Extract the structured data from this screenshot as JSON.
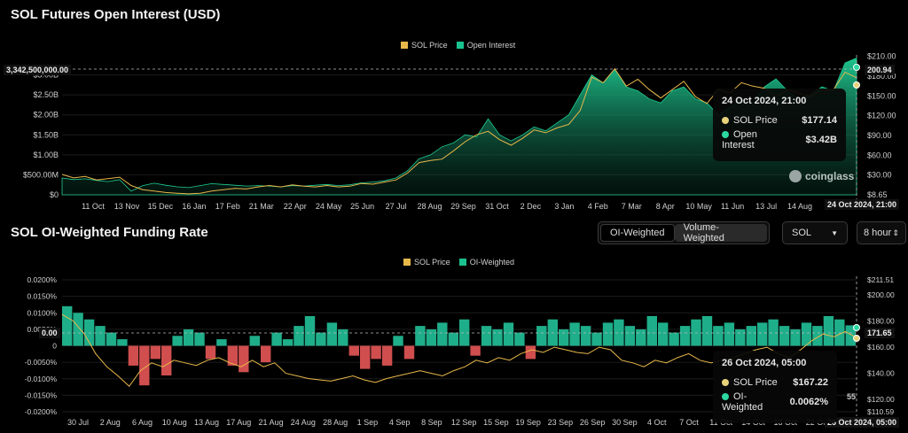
{
  "chart1": {
    "title": "SOL Futures Open Interest (USD)",
    "legend": [
      {
        "label": "SOL Price",
        "color": "#e8b84a"
      },
      {
        "label": "Open Interest",
        "color": "#19c28e"
      }
    ],
    "crosshair_value": "3,342,500,000.00",
    "right_top_label": "200.94",
    "x_highlight": "24 Oct 2024, 21:00",
    "tooltip": {
      "header": "24 Oct 2024, 21:00",
      "rows": [
        {
          "label": "SOL Price",
          "value": "$177.14",
          "color": "#e8d27a"
        },
        {
          "label": "Open Interest",
          "value": "$3.42B",
          "color": "#2bd8a0"
        }
      ]
    },
    "watermark": "coinglass"
  },
  "chart2": {
    "title": "SOL OI-Weighted Funding Rate",
    "legend": [
      {
        "label": "SOL Price",
        "color": "#e8b84a"
      },
      {
        "label": "OI-Weighted",
        "color": "#19c28e"
      }
    ],
    "crosshair_value": "0.00",
    "right_label": "171.65",
    "x_highlight": "26 Oct 2024, 05:00",
    "tooltip": {
      "header": "26 Oct 2024, 05:00",
      "rows": [
        {
          "label": "SOL Price",
          "value": "$167.22",
          "color": "#e8d27a"
        },
        {
          "label": "OI-Weighted",
          "value": "0.0062%",
          "color": "#2bd8a0"
        }
      ]
    },
    "stray_label": "55"
  },
  "controls": {
    "toggle_active": "OI-Weighted",
    "toggle_inactive": "Volume-Weighted",
    "coin": "SOL",
    "interval": "8 hour"
  },
  "chart_data": [
    {
      "type": "area",
      "title": "SOL Futures Open Interest (USD)",
      "x_ticks": [
        "11 Oct",
        "13 Nov",
        "15 Dec",
        "16 Jan",
        "17 Feb",
        "21 Mar",
        "22 Apr",
        "24 May",
        "25 Jun",
        "27 Jul",
        "28 Aug",
        "29 Sep",
        "31 Oct",
        "2 Dec",
        "3 Jan",
        "4 Feb",
        "7 Mar",
        "8 Apr",
        "10 May",
        "11 Jun",
        "13 Jul",
        "14 Aug",
        "15 S"
      ],
      "y_left_ticks": [
        "$0",
        "$500.00M",
        "$1.00B",
        "$1.50B",
        "$2.00B",
        "$2.50B",
        "$3.00B"
      ],
      "y_right_ticks": [
        "$8.65",
        "$30.00",
        "$60.00",
        "$90.00",
        "$120.00",
        "$150.00",
        "$180.00",
        "$210.00"
      ],
      "y_left_range": [
        0,
        3500000000
      ],
      "y_right_range": [
        8.65,
        210
      ],
      "series": [
        {
          "name": "Open Interest",
          "axis": "left",
          "values": [
            420000000,
            380000000,
            400000000,
            360000000,
            330000000,
            380000000,
            90000000,
            230000000,
            290000000,
            240000000,
            200000000,
            180000000,
            230000000,
            280000000,
            260000000,
            240000000,
            220000000,
            230000000,
            220000000,
            200000000,
            230000000,
            220000000,
            240000000,
            260000000,
            230000000,
            250000000,
            300000000,
            320000000,
            350000000,
            420000000,
            600000000,
            900000000,
            1000000000,
            1200000000,
            1300000000,
            1500000000,
            1450000000,
            1900000000,
            1500000000,
            1350000000,
            1500000000,
            1700000000,
            1600000000,
            1800000000,
            2000000000,
            2500000000,
            3000000000,
            2800000000,
            3150000000,
            2700000000,
            2600000000,
            2400000000,
            2300000000,
            2600000000,
            2700000000,
            2400000000,
            2300000000,
            2000000000,
            2200000000,
            2400000000,
            2300000000,
            2700000000,
            2900000000,
            2600000000,
            2400000000,
            2500000000,
            2700000000,
            2600000000,
            3300000000,
            3420000000
          ]
        },
        {
          "name": "SOL Price",
          "axis": "right",
          "values": [
            38,
            33,
            35,
            30,
            32,
            34,
            22,
            16,
            14,
            12,
            11,
            10,
            11,
            14,
            16,
            18,
            17,
            20,
            22,
            20,
            23,
            21,
            20,
            22,
            20,
            21,
            25,
            24,
            27,
            30,
            40,
            55,
            58,
            60,
            72,
            85,
            95,
            100,
            88,
            80,
            90,
            102,
            98,
            105,
            110,
            130,
            178,
            170,
            190,
            165,
            175,
            160,
            148,
            160,
            172,
            150,
            140,
            160,
            155,
            170,
            165,
            162,
            150,
            160,
            155,
            150,
            160,
            160,
            185,
            177.14
          ]
        }
      ]
    },
    {
      "type": "bar",
      "title": "SOL OI-Weighted Funding Rate",
      "x_ticks": [
        "30 Jul",
        "2 Aug",
        "6 Aug",
        "10 Aug",
        "13 Aug",
        "17 Aug",
        "21 Aug",
        "24 Aug",
        "28 Aug",
        "1 Sep",
        "4 Sep",
        "8 Sep",
        "12 Sep",
        "15 Sep",
        "19 Sep",
        "23 Sep",
        "26 Sep",
        "30 Sep",
        "4 Oct",
        "7 Oct",
        "11 Oct",
        "14 Oct",
        "18 Oct",
        "22 Oct"
      ],
      "y_left_ticks": [
        "-0.0200%",
        "-0.0150%",
        "-0.0100%",
        "-0.0050%",
        "0",
        "0.0050%",
        "0.0100%",
        "0.0150%",
        "0.0200%"
      ],
      "y_right_ticks": [
        "$110.59",
        "$120.00",
        "$140.00",
        "$160.00",
        "$180.00",
        "$200.00",
        "$211.51"
      ],
      "y_left_range": [
        -0.02,
        0.02
      ],
      "y_right_range": [
        110.59,
        211.51
      ],
      "series": [
        {
          "name": "OI-Weighted",
          "axis": "left",
          "values": [
            0.012,
            0.01,
            0.008,
            0.006,
            0.004,
            0.002,
            -0.006,
            -0.012,
            -0.004,
            -0.009,
            0.003,
            0.005,
            0.004,
            -0.004,
            0.002,
            -0.006,
            -0.008,
            0.003,
            -0.005,
            0.004,
            0.002,
            0.006,
            0.009,
            0.004,
            0.007,
            0.005,
            -0.003,
            -0.007,
            -0.004,
            -0.006,
            0.003,
            -0.004,
            0.006,
            0.005,
            0.007,
            0.004,
            0.008,
            -0.003,
            0.006,
            0.005,
            0.007,
            0.004,
            -0.004,
            0.006,
            0.008,
            0.005,
            0.007,
            0.006,
            0.004,
            0.007,
            0.008,
            0.006,
            0.005,
            0.009,
            0.007,
            0.004,
            0.006,
            0.008,
            0.009,
            0.006,
            0.007,
            0.005,
            0.006,
            0.007,
            0.008,
            0.006,
            0.005,
            0.007,
            0.006,
            0.009,
            0.008,
            0.0062
          ]
        },
        {
          "name": "SOL Price",
          "axis": "right",
          "values": [
            185,
            180,
            170,
            155,
            145,
            138,
            130,
            142,
            148,
            145,
            150,
            148,
            146,
            150,
            152,
            148,
            145,
            150,
            145,
            148,
            140,
            138,
            136,
            135,
            134,
            136,
            138,
            135,
            133,
            136,
            138,
            140,
            142,
            140,
            138,
            142,
            145,
            150,
            148,
            152,
            150,
            155,
            158,
            156,
            160,
            158,
            156,
            155,
            160,
            158,
            150,
            148,
            145,
            150,
            148,
            152,
            155,
            150,
            148,
            150,
            152,
            155,
            158,
            160,
            155,
            152,
            158,
            165,
            170,
            168,
            172,
            167.22
          ]
        }
      ]
    }
  ]
}
